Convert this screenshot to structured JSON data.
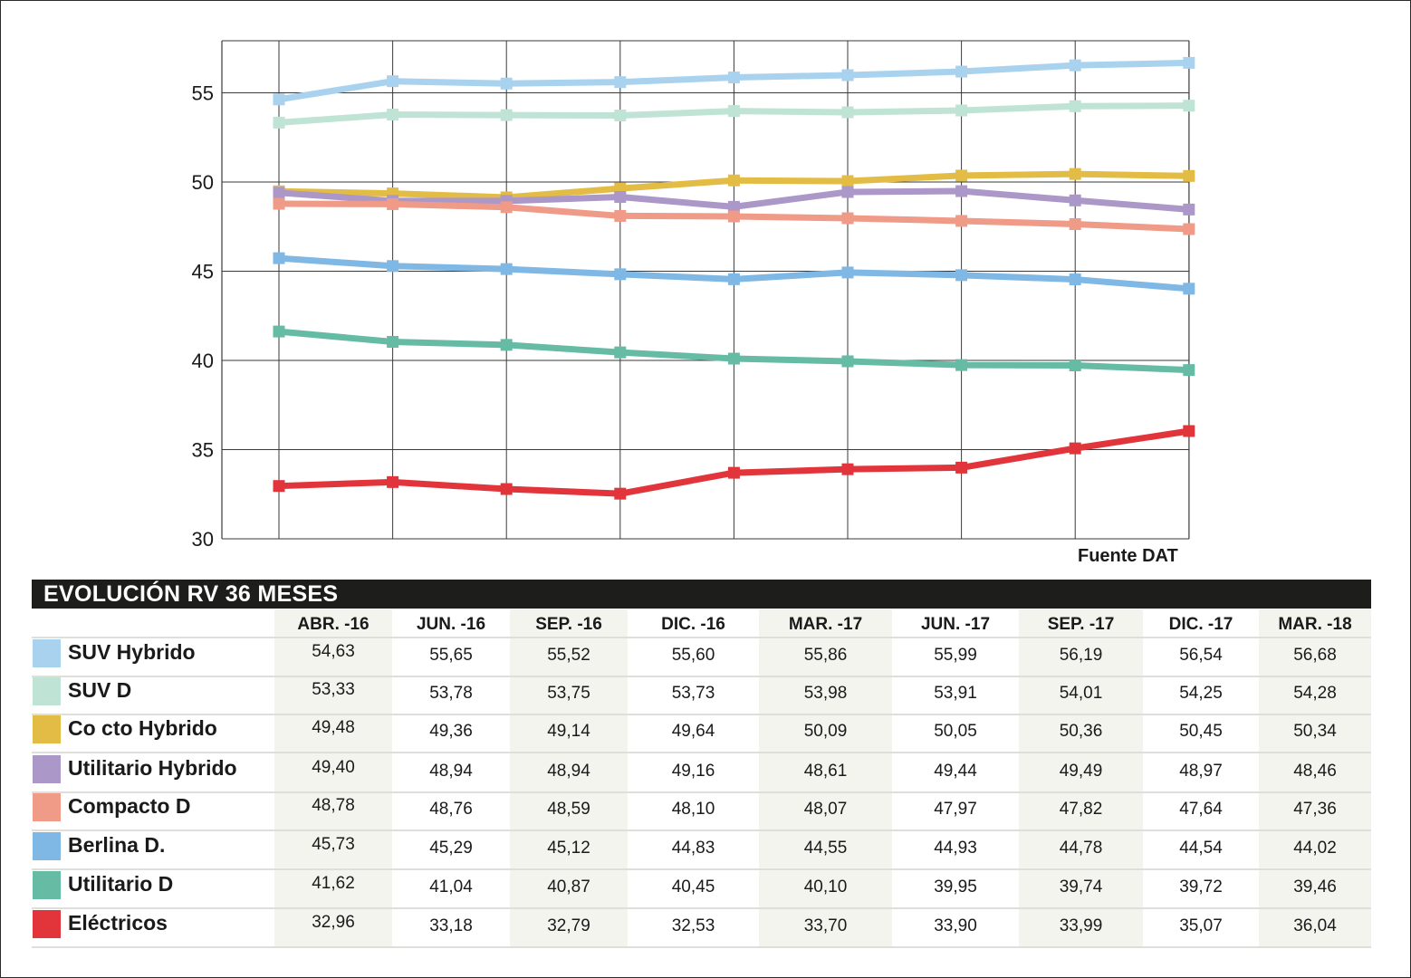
{
  "colors": {
    "SUV Hybrido": "#a9d2ee",
    "SUV D": "#bfe3d4",
    "Co cto Hybrido": "#e2bc45",
    "Utilitario Hybrido": "#ab97c8",
    "Compacto D": "#f09a88",
    "Berlina D.": "#7fb8e4",
    "Utilitario D": "#65bba3",
    "Eléctricos": "#e2353b"
  },
  "chart_data": {
    "type": "line",
    "categories": [
      "ABR. -16",
      "JUN. -16",
      "SEP. -16",
      "DIC. -16",
      "MAR. -17",
      "JUN. -17",
      "SEP. -17",
      "DIC. -17",
      "MAR. -18"
    ],
    "ylim": [
      30,
      58
    ],
    "yticks": [
      30,
      35,
      40,
      45,
      50,
      55
    ],
    "grid": true,
    "source": "Fuente DAT",
    "series": [
      {
        "name": "SUV Hybrido",
        "values": [
          54.63,
          55.65,
          55.52,
          55.6,
          55.86,
          55.99,
          56.19,
          56.54,
          56.68
        ]
      },
      {
        "name": "SUV D",
        "values": [
          53.33,
          53.78,
          53.75,
          53.73,
          53.98,
          53.91,
          54.01,
          54.25,
          54.28
        ]
      },
      {
        "name": "Co cto Hybrido",
        "values": [
          49.48,
          49.36,
          49.14,
          49.64,
          50.09,
          50.05,
          50.36,
          50.45,
          50.34
        ]
      },
      {
        "name": "Utilitario Hybrido",
        "values": [
          49.4,
          48.94,
          48.94,
          49.16,
          48.61,
          49.44,
          49.49,
          48.97,
          48.46
        ]
      },
      {
        "name": "Compacto D",
        "values": [
          48.78,
          48.76,
          48.59,
          48.1,
          48.07,
          47.97,
          47.82,
          47.64,
          47.36
        ]
      },
      {
        "name": "Berlina D.",
        "values": [
          45.73,
          45.29,
          45.12,
          44.83,
          44.55,
          44.93,
          44.78,
          44.54,
          44.02
        ]
      },
      {
        "name": "Utilitario D",
        "values": [
          41.62,
          41.04,
          40.87,
          40.45,
          40.1,
          39.95,
          39.74,
          39.72,
          39.46
        ]
      },
      {
        "name": "Eléctricos",
        "values": [
          32.96,
          33.18,
          32.79,
          32.53,
          33.7,
          33.9,
          33.99,
          35.07,
          36.04
        ]
      }
    ]
  },
  "table": {
    "title": "EVOLUCIÓN RV 36 MESES",
    "headers": [
      "ABR. -16",
      "JUN. -16",
      "SEP. -16",
      "DIC. -16",
      "MAR. -17",
      "JUN. -17",
      "SEP. -17",
      "DIC. -17",
      "MAR. -18"
    ],
    "rows": [
      {
        "name": "SUV Hybrido",
        "cells": [
          "54,63",
          "55,65",
          "55,52",
          "55,60",
          "55,86",
          "55,99",
          "56,19",
          "56,54",
          "56,68"
        ]
      },
      {
        "name": "SUV D",
        "cells": [
          "53,33",
          "53,78",
          "53,75",
          "53,73",
          "53,98",
          "53,91",
          "54,01",
          "54,25",
          "54,28"
        ]
      },
      {
        "name": "Co cto Hybrido",
        "cells": [
          "49,48",
          "49,36",
          "49,14",
          "49,64",
          "50,09",
          "50,05",
          "50,36",
          "50,45",
          "50,34"
        ]
      },
      {
        "name": "Utilitario Hybrido",
        "cells": [
          "49,40",
          "48,94",
          "48,94",
          "49,16",
          "48,61",
          "49,44",
          "49,49",
          "48,97",
          "48,46"
        ]
      },
      {
        "name": "Compacto D",
        "cells": [
          "48,78",
          "48,76",
          "48,59",
          "48,10",
          "48,07",
          "47,97",
          "47,82",
          "47,64",
          "47,36"
        ]
      },
      {
        "name": "Berlina D.",
        "cells": [
          "45,73",
          "45,29",
          "45,12",
          "44,83",
          "44,55",
          "44,93",
          "44,78",
          "44,54",
          "44,02"
        ]
      },
      {
        "name": "Utilitario D",
        "cells": [
          "41,62",
          "41,04",
          "40,87",
          "40,45",
          "40,10",
          "39,95",
          "39,74",
          "39,72",
          "39,46"
        ]
      },
      {
        "name": "Eléctricos",
        "cells": [
          "32,96",
          "33,18",
          "32,79",
          "32,53",
          "33,70",
          "33,90",
          "33,99",
          "35,07",
          "36,04"
        ]
      }
    ]
  }
}
